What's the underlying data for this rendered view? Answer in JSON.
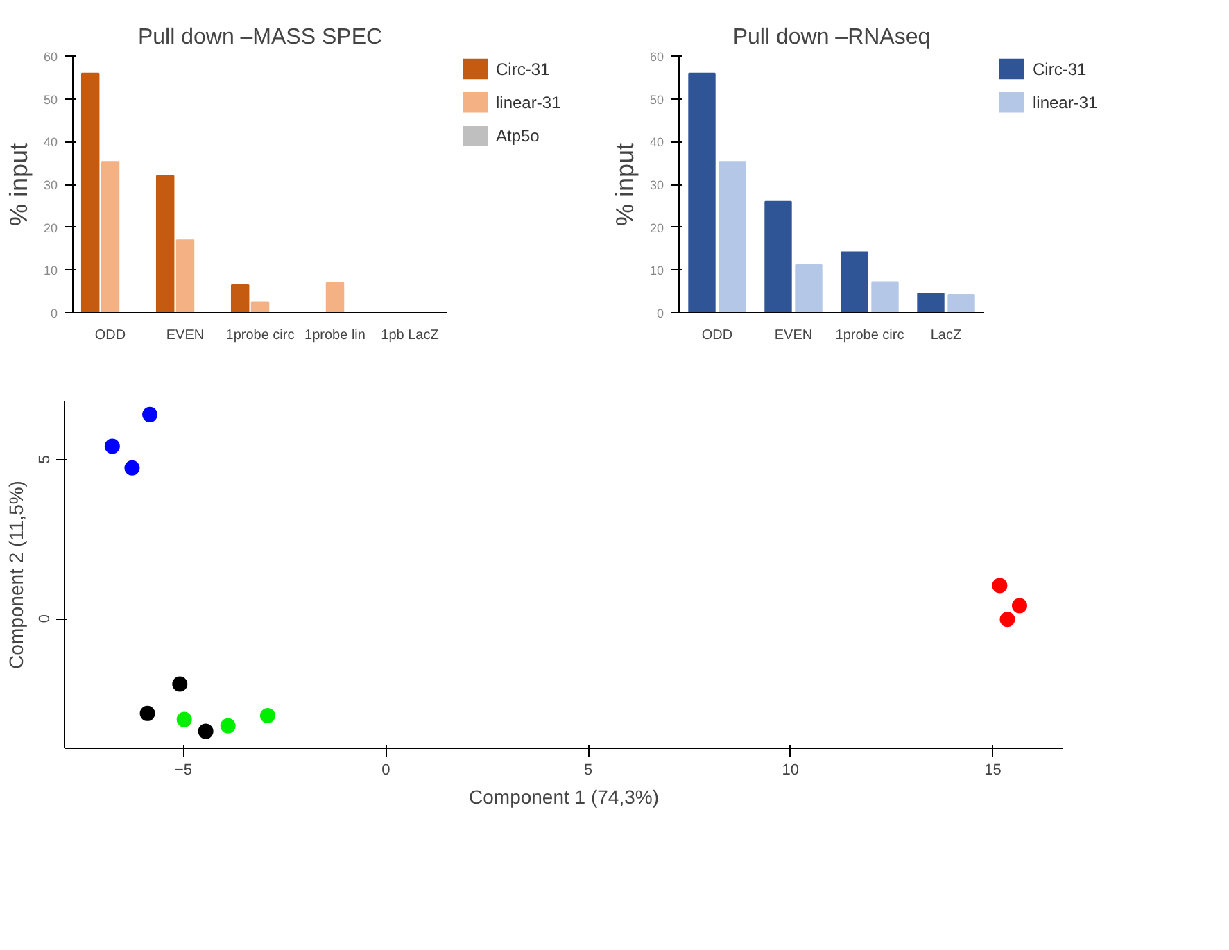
{
  "chart_data": [
    {
      "type": "bar",
      "title": "Pull down –MASS SPEC",
      "ylabel": "% input",
      "categories": [
        "ODD",
        "EVEN",
        "1probe circ",
        "1probe lin",
        "1pb LacZ"
      ],
      "ylim": [
        0,
        60
      ],
      "yticks": [
        0,
        10,
        20,
        30,
        40,
        50,
        60
      ],
      "grid": false,
      "legend": "right",
      "series": [
        {
          "name": "Circ-31",
          "color": "#c55a11",
          "values": [
            56,
            32,
            6.5,
            null,
            null
          ]
        },
        {
          "name": "linear-31",
          "color": "#f4b183",
          "values": [
            35.3,
            17,
            2.5,
            7,
            null
          ]
        },
        {
          "name": "Atp5o",
          "color": "#bfbfbf",
          "values": [
            null,
            null,
            null,
            null,
            null
          ]
        }
      ]
    },
    {
      "type": "bar",
      "title": "Pull down –RNAseq",
      "ylabel": "% input",
      "categories": [
        "ODD",
        "EVEN",
        "1probe circ",
        "LacZ"
      ],
      "ylim": [
        0,
        60
      ],
      "yticks": [
        0,
        10,
        20,
        30,
        40,
        50,
        60
      ],
      "grid": false,
      "legend": "right",
      "series": [
        {
          "name": "Circ-31",
          "color": "#2f5597",
          "values": [
            56,
            26,
            14.2,
            4.5
          ]
        },
        {
          "name": "linear-31",
          "color": "#b4c7e7",
          "values": [
            35.3,
            11.2,
            7.2,
            4.2
          ]
        }
      ]
    },
    {
      "type": "scatter",
      "xlabel": "Component 1 (74,3%)",
      "ylabel": "Component 2 (11,5%)",
      "xlim": [
        -7.94,
        16.74
      ],
      "ylim": [
        -4.06,
        6.81
      ],
      "xticks": [
        -5,
        0,
        5,
        10,
        15
      ],
      "yticks": [
        0,
        5
      ],
      "grid": false,
      "marker": "circle",
      "series": [
        {
          "color": "#0000ff",
          "x": [
            -6.76,
            -6.27,
            -5.83
          ],
          "values": [
            5.41,
            4.73,
            6.4
          ]
        },
        {
          "color": "#000000",
          "x": [
            -5.09,
            -5.89,
            -4.45
          ],
          "values": [
            -2.05,
            -2.97,
            -3.53
          ]
        },
        {
          "color": "#00ee00",
          "x": [
            -4.98,
            -3.9,
            -2.92
          ],
          "values": [
            -3.16,
            -3.36,
            -3.04
          ]
        },
        {
          "color": "#ff0000",
          "x": [
            15.17,
            15.66,
            15.36
          ],
          "values": [
            1.04,
            0.41,
            -0.02
          ]
        }
      ]
    }
  ]
}
